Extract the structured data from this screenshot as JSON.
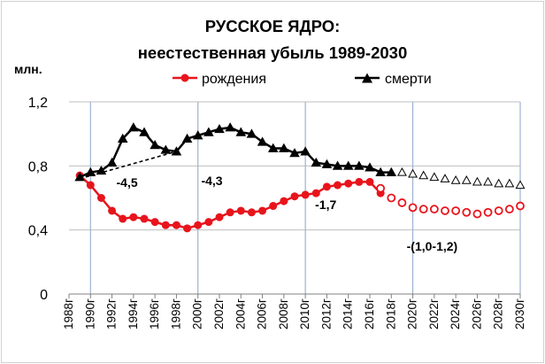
{
  "chart_data": {
    "type": "line",
    "title_line1": "РУССКОЕ ЯДРО:",
    "title_line2": "неестественная убыль 1989-2030",
    "y_unit": "млн.",
    "ylim": [
      0,
      1.2
    ],
    "y_ticks": [
      {
        "value": 0,
        "label": "0"
      },
      {
        "value": 0.4,
        "label": "0,4"
      },
      {
        "value": 0.8,
        "label": "0,8"
      },
      {
        "value": 1.2,
        "label": "1,2"
      }
    ],
    "xlim": [
      1988,
      2030
    ],
    "x_ticks": [
      {
        "value": 1988,
        "label": "1988г"
      },
      {
        "value": 1990,
        "label": "1990г"
      },
      {
        "value": 1992,
        "label": "1992г"
      },
      {
        "value": 1994,
        "label": "1994г"
      },
      {
        "value": 1996,
        "label": "1996г"
      },
      {
        "value": 1998,
        "label": "1998г"
      },
      {
        "value": 2000,
        "label": "2000г"
      },
      {
        "value": 2002,
        "label": "2002г"
      },
      {
        "value": 2004,
        "label": "2004г"
      },
      {
        "value": 2006,
        "label": "2006г"
      },
      {
        "value": 2008,
        "label": "2008г"
      },
      {
        "value": 2010,
        "label": "2010г"
      },
      {
        "value": 2012,
        "label": "2012г"
      },
      {
        "value": 2014,
        "label": "2014г"
      },
      {
        "value": 2016,
        "label": "2016г"
      },
      {
        "value": 2018,
        "label": "2018г"
      },
      {
        "value": 2020,
        "label": "2020г"
      },
      {
        "value": 2022,
        "label": "2022г"
      },
      {
        "value": 2024,
        "label": "2024г"
      },
      {
        "value": 2026,
        "label": "2026г"
      },
      {
        "value": 2028,
        "label": "2028г"
      },
      {
        "value": 2030,
        "label": "2030г"
      }
    ],
    "vertical_gridlines": [
      1990,
      2000,
      2010,
      2020,
      2030
    ],
    "legend_position": "top-center",
    "series": [
      {
        "name": "рождения",
        "color": "#e8141c",
        "marker": "circle",
        "x": [
          1989,
          1990,
          1991,
          1992,
          1993,
          1994,
          1995,
          1996,
          1997,
          1998,
          1999,
          2000,
          2001,
          2002,
          2003,
          2004,
          2005,
          2006,
          2007,
          2008,
          2009,
          2010,
          2011,
          2012,
          2013,
          2014,
          2015,
          2016,
          2017
        ],
        "values": [
          0.74,
          0.68,
          0.6,
          0.52,
          0.47,
          0.48,
          0.47,
          0.45,
          0.43,
          0.43,
          0.41,
          0.43,
          0.45,
          0.48,
          0.51,
          0.52,
          0.51,
          0.52,
          0.55,
          0.58,
          0.61,
          0.62,
          0.63,
          0.67,
          0.68,
          0.69,
          0.7,
          0.7,
          0.63
        ]
      },
      {
        "name": "смерти",
        "color": "#000000",
        "marker": "triangle",
        "x": [
          1989,
          1990,
          1991,
          1992,
          1993,
          1994,
          1995,
          1996,
          1997,
          1998,
          1999,
          2000,
          2001,
          2002,
          2003,
          2004,
          2005,
          2006,
          2007,
          2008,
          2009,
          2010,
          2011,
          2012,
          2013,
          2014,
          2015,
          2016,
          2017,
          2018
        ],
        "values": [
          0.73,
          0.76,
          0.77,
          0.82,
          0.97,
          1.04,
          1.01,
          0.93,
          0.9,
          0.89,
          0.97,
          0.99,
          1.01,
          1.03,
          1.04,
          1.01,
          1.0,
          0.95,
          0.91,
          0.91,
          0.88,
          0.89,
          0.82,
          0.81,
          0.8,
          0.8,
          0.8,
          0.79,
          0.76,
          0.76
        ]
      },
      {
        "name": "",
        "role": "births-projection",
        "color": "#e8141c",
        "marker": "open-circle",
        "x": [
          2017,
          2018,
          2019,
          2020,
          2021,
          2022,
          2023,
          2024,
          2025,
          2026,
          2027,
          2028,
          2029,
          2030
        ],
        "values": [
          0.66,
          0.6,
          0.57,
          0.54,
          0.53,
          0.53,
          0.52,
          0.52,
          0.51,
          0.5,
          0.51,
          0.52,
          0.53,
          0.55
        ]
      },
      {
        "name": "",
        "role": "deaths-projection",
        "color": "#000000",
        "marker": "open-triangle",
        "x": [
          2019,
          2020,
          2021,
          2022,
          2023,
          2024,
          2025,
          2026,
          2027,
          2028,
          2029,
          2030
        ],
        "values": [
          0.76,
          0.75,
          0.74,
          0.73,
          0.72,
          0.71,
          0.71,
          0.7,
          0.7,
          0.69,
          0.69,
          0.68
        ]
      },
      {
        "name": "",
        "role": "dashed-trend",
        "color": "#000000",
        "style": "dashed",
        "x": [
          1989,
          1998
        ],
        "values": [
          0.72,
          0.89
        ]
      }
    ],
    "annotations": [
      {
        "text": "-4,5",
        "x": 1993.4,
        "y": 0.67
      },
      {
        "text": "-4,3",
        "x": 2001.3,
        "y": 0.68
      },
      {
        "text": "-1,7",
        "x": 2011.9,
        "y": 0.53
      },
      {
        "text": "-(1,0-1,2)",
        "x": 2021.8,
        "y": 0.27
      }
    ]
  }
}
